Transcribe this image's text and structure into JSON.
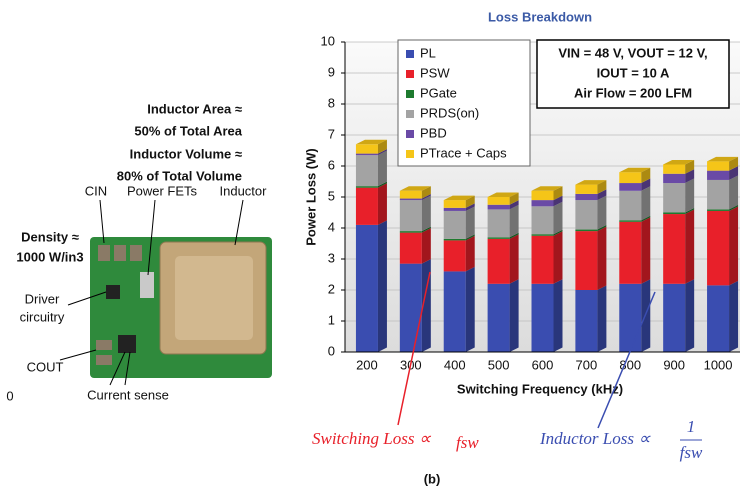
{
  "chart_data": {
    "type": "stacked-bar",
    "title": "Loss Breakdown",
    "x_label": "Switching Frequency (kHz)",
    "y_label": "Power Loss (W)",
    "categories": [
      "200",
      "300",
      "400",
      "500",
      "600",
      "700",
      "800",
      "900",
      "1000"
    ],
    "series": [
      {
        "name": "PL",
        "color": "#3a4db0",
        "values": [
          4.1,
          2.85,
          2.6,
          2.2,
          2.2,
          2.0,
          2.2,
          2.2,
          2.15
        ]
      },
      {
        "name": "PSW",
        "color": "#e8202a",
        "values": [
          1.2,
          1.0,
          1.0,
          1.45,
          1.55,
          1.9,
          2.0,
          2.25,
          2.4
        ]
      },
      {
        "name": "PGate",
        "color": "#1e7a2e",
        "values": [
          0.05,
          0.05,
          0.05,
          0.05,
          0.05,
          0.05,
          0.05,
          0.05,
          0.05
        ]
      },
      {
        "name": "PRDS(on)",
        "color": "#a3a3a3",
        "values": [
          1.0,
          1.0,
          0.9,
          0.9,
          0.9,
          0.95,
          0.95,
          0.95,
          0.95
        ]
      },
      {
        "name": "PBD",
        "color": "#6a4aa6",
        "values": [
          0.05,
          0.05,
          0.1,
          0.15,
          0.2,
          0.2,
          0.25,
          0.3,
          0.3
        ]
      },
      {
        "name": "PTrace + Caps",
        "color": "#f5c518",
        "values": [
          0.3,
          0.25,
          0.25,
          0.25,
          0.3,
          0.3,
          0.35,
          0.3,
          0.3
        ]
      }
    ],
    "ylim": [
      0,
      10
    ],
    "yticks": [
      0,
      1,
      2,
      3,
      4,
      5,
      6,
      7,
      8,
      9,
      10
    ],
    "grid": true,
    "conditions": [
      "VIN = 48 V, VOUT = 12 V,",
      "IOUT = 10 A",
      "Air Flow = 200 LFM"
    ],
    "annotations": {
      "switching": "Switching Loss ∝",
      "switching_var": "fsw",
      "inductor": "Inductor Loss ∝",
      "inductor_num": "1",
      "inductor_den": "fsw"
    }
  },
  "photo": {
    "heading": [
      "Inductor Area ≈",
      "50% of Total Area",
      "Inductor Volume ≈",
      "80% of Total Volume"
    ],
    "cin": "CIN",
    "fets": "Power FETs",
    "inductor": "Inductor",
    "density": [
      "Density ≈",
      "1000 W/in3"
    ],
    "driver": [
      "Driver",
      "circuitry"
    ],
    "cout": "COUT",
    "sense": "Current sense",
    "stray": "0"
  },
  "caption": "(b)"
}
